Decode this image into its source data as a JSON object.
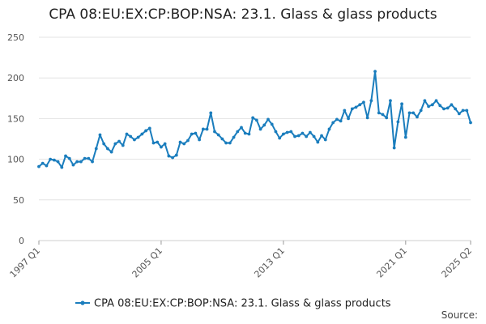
{
  "chart_data": {
    "type": "line",
    "title": "CPA 08:EU:EX:CP:BOP:NSA: 23.1. Glass & glass products",
    "xlabel": "",
    "ylabel": "",
    "ylim": [
      0,
      250
    ],
    "y_ticks": [
      "0",
      "50",
      "100",
      "150",
      "200",
      "250"
    ],
    "x_ticks": [
      "1997 Q1",
      "2005 Q1",
      "2013 Q1",
      "2021 Q1",
      "2025 Q2"
    ],
    "grid": true,
    "legend": "bottom",
    "series": [
      {
        "name": "CPA 08:EU:EX:CP:BOP:NSA: 23.1. Glass & glass products",
        "color": "#1a7dbd",
        "x": [
          "1997 Q1",
          "1997 Q2",
          "1997 Q3",
          "1997 Q4",
          "1998 Q1",
          "1998 Q2",
          "1998 Q3",
          "1998 Q4",
          "1999 Q1",
          "1999 Q2",
          "1999 Q3",
          "1999 Q4",
          "2000 Q1",
          "2000 Q2",
          "2000 Q3",
          "2000 Q4",
          "2001 Q1",
          "2001 Q2",
          "2001 Q3",
          "2001 Q4",
          "2002 Q1",
          "2002 Q2",
          "2002 Q3",
          "2002 Q4",
          "2003 Q1",
          "2003 Q2",
          "2003 Q3",
          "2003 Q4",
          "2004 Q1",
          "2004 Q2",
          "2004 Q3",
          "2004 Q4",
          "2005 Q1",
          "2005 Q2",
          "2005 Q3",
          "2005 Q4",
          "2006 Q1",
          "2006 Q2",
          "2006 Q3",
          "2006 Q4",
          "2007 Q1",
          "2007 Q2",
          "2007 Q3",
          "2007 Q4",
          "2008 Q1",
          "2008 Q2",
          "2008 Q3",
          "2008 Q4",
          "2009 Q1",
          "2009 Q2",
          "2009 Q3",
          "2009 Q4",
          "2010 Q1",
          "2010 Q2",
          "2010 Q3",
          "2010 Q4",
          "2011 Q1",
          "2011 Q2",
          "2011 Q3",
          "2011 Q4",
          "2012 Q1",
          "2012 Q2",
          "2012 Q3",
          "2012 Q4",
          "2013 Q1",
          "2013 Q2",
          "2013 Q3",
          "2013 Q4",
          "2014 Q1",
          "2014 Q2",
          "2014 Q3",
          "2014 Q4",
          "2015 Q1",
          "2015 Q2",
          "2015 Q3",
          "2015 Q4",
          "2016 Q1",
          "2016 Q2",
          "2016 Q3",
          "2016 Q4",
          "2017 Q1",
          "2017 Q2",
          "2017 Q3",
          "2017 Q4",
          "2018 Q1",
          "2018 Q2",
          "2018 Q3",
          "2018 Q4",
          "2019 Q1",
          "2019 Q2",
          "2019 Q3",
          "2019 Q4",
          "2020 Q1",
          "2020 Q2",
          "2020 Q3",
          "2020 Q4",
          "2021 Q1",
          "2021 Q2",
          "2021 Q3",
          "2021 Q4",
          "2022 Q1",
          "2022 Q2",
          "2022 Q3",
          "2022 Q4",
          "2023 Q1",
          "2023 Q2",
          "2023 Q3",
          "2023 Q4",
          "2024 Q1",
          "2024 Q2",
          "2024 Q3",
          "2024 Q4",
          "2025 Q1",
          "2025 Q2"
        ],
        "values": [
          91,
          95,
          92,
          100,
          99,
          97,
          90,
          104,
          101,
          93,
          97,
          97,
          101,
          101,
          97,
          113,
          130,
          119,
          113,
          109,
          119,
          122,
          117,
          131,
          128,
          124,
          127,
          131,
          135,
          138,
          120,
          121,
          115,
          119,
          104,
          102,
          105,
          121,
          119,
          123,
          131,
          132,
          124,
          137,
          137,
          157,
          134,
          130,
          125,
          120,
          120,
          127,
          134,
          139,
          132,
          131,
          151,
          148,
          137,
          142,
          149,
          143,
          134,
          126,
          131,
          133,
          134,
          128,
          129,
          132,
          128,
          133,
          128,
          121,
          129,
          124,
          137,
          145,
          149,
          147,
          160,
          150,
          162,
          164,
          167,
          170,
          151,
          172,
          208,
          157,
          155,
          151,
          172,
          114,
          146,
          168,
          127,
          157,
          157,
          152,
          160,
          172,
          165,
          167,
          172,
          166,
          162,
          163,
          167,
          162,
          156,
          160,
          160,
          145
        ]
      }
    ],
    "source_label": "Source:"
  }
}
